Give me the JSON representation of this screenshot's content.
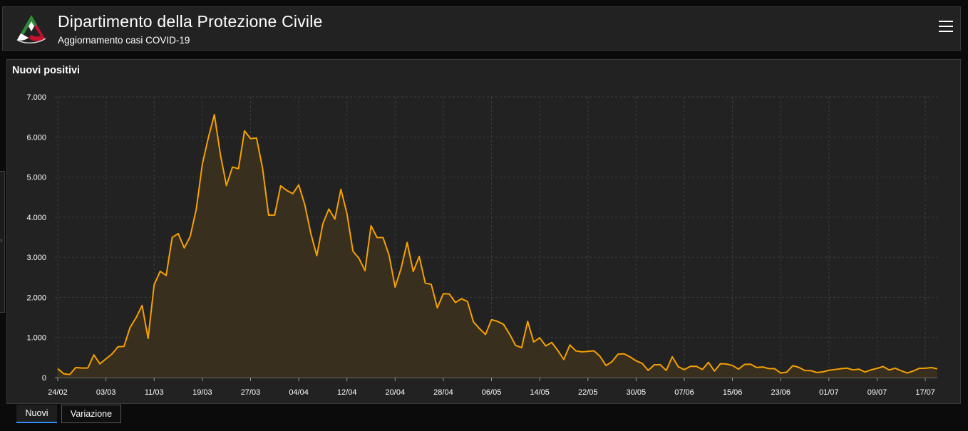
{
  "header": {
    "title": "Dipartimento della Protezione Civile",
    "subtitle": "Aggiornamento casi COVID-19",
    "logo_icon": "protezione-civile-logo-icon",
    "menu_icon": "hamburger-menu-icon"
  },
  "panel": {
    "title": "Nuovi positivi"
  },
  "tabs": [
    {
      "label": "Nuovi",
      "active": true
    },
    {
      "label": "Variazione",
      "active": false
    }
  ],
  "colors": {
    "line": "#f5a000",
    "area": "#3b3020",
    "accent": "#2f8fff",
    "background": "#222222"
  },
  "chart_data": {
    "type": "area",
    "title": "Nuovi positivi",
    "xlabel": "",
    "ylabel": "",
    "ylim": [
      0,
      7000
    ],
    "yticks": [
      "0",
      "1.000",
      "2.000",
      "3.000",
      "4.000",
      "5.000",
      "6.000",
      "7.000"
    ],
    "xticks": [
      "24/02",
      "03/03",
      "11/03",
      "19/03",
      "27/03",
      "04/04",
      "12/04",
      "20/04",
      "28/04",
      "06/05",
      "14/05",
      "22/05",
      "30/05",
      "07/06",
      "15/06",
      "23/06",
      "01/07",
      "09/07",
      "17/07"
    ],
    "grid": true,
    "x_start": "24/02",
    "x_end": "18/07",
    "series": [
      {
        "values": [
          221,
          93,
          78,
          250,
          238,
          240,
          566,
          342,
          466,
          587,
          769,
          778,
          1247,
          1492,
          1797,
          977,
          2313,
          2651,
          2547,
          3497,
          3590,
          3233,
          3526,
          4207,
          5322,
          5986,
          6557,
          5560,
          4789,
          5249,
          5210,
          6153,
          5959,
          5974,
          5217,
          4050,
          4053,
          4782,
          4668,
          4585,
          4805,
          4316,
          3599,
          3039,
          3836,
          4204,
          3951,
          4694,
          4092,
          3153,
          2972,
          2667,
          3786,
          3493,
          3491,
          3047,
          2256,
          2729,
          3370,
          2646,
          3021,
          2357,
          2324,
          1739,
          2091,
          2086,
          1872,
          1965,
          1900,
          1389,
          1221,
          1075,
          1444,
          1401,
          1327,
          1083,
          802,
          744,
          1402,
          888,
          992,
          789,
          875,
          675,
          451,
          813,
          665,
          642,
          652,
          669,
          531,
          300,
          397,
          584,
          593,
          516,
          416,
          355,
          178,
          318,
          321,
          177,
          518,
          270,
          197,
          280,
          283,
          202,
          379,
          163,
          346,
          338,
          301,
          210,
          329,
          333,
          251,
          264,
          224,
          221,
          113,
          136,
          296,
          255,
          175,
          174,
          126,
          142,
          182,
          201,
          223,
          235,
          192,
          208,
          138,
          193,
          229,
          276,
          188,
          234,
          169,
          114,
          163,
          230,
          233,
          249,
          219
        ]
      }
    ]
  }
}
